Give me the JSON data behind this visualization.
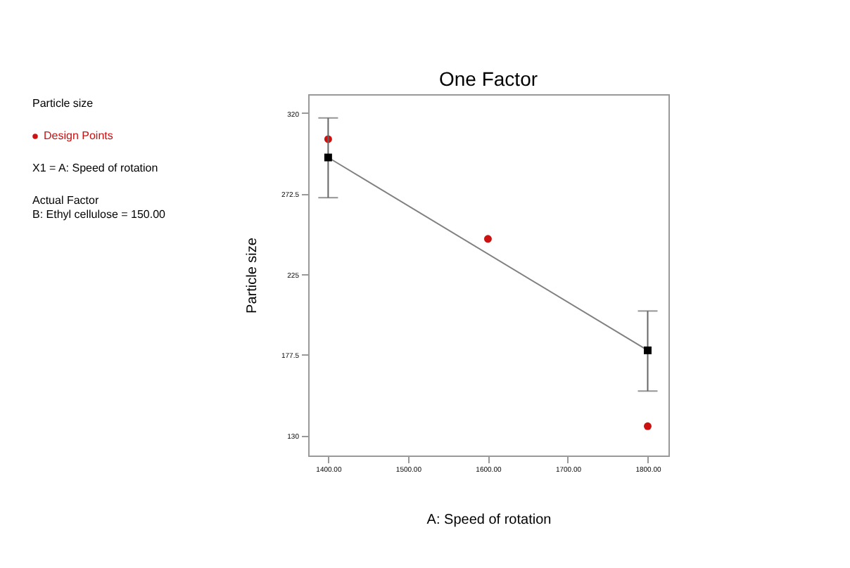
{
  "chart_data": {
    "type": "scatter",
    "title": "One Factor",
    "xlabel": "A: Speed of rotation",
    "ylabel": "Particle size",
    "annotations": [
      "Particle size",
      "X1 = A: Speed of rotation",
      "Actual Factor",
      "B: Ethyl cellulose = 150.00"
    ],
    "series": [
      {
        "name": "Design Points",
        "marker": "circle",
        "color": "#cc1111",
        "x": [
          1400,
          1600,
          1800
        ],
        "values": [
          304.5,
          245.7,
          135.3
        ]
      },
      {
        "type": "line",
        "marker": "none",
        "color": "#808080",
        "x": [
          1400,
          1800
        ],
        "values": [
          293.7,
          180
        ]
      },
      {
        "marker": "square",
        "color": "#000000",
        "x": [
          1400,
          1800
        ],
        "values": [
          293.7,
          180
        ],
        "errors": [
          [
            270,
            317
          ],
          [
            156,
            203.2
          ]
        ]
      }
    ],
    "xlim": [
      1375,
      1826
    ],
    "ylim": [
      118,
      331
    ],
    "xticks": [
      {
        "value": 1400,
        "label": "1400.00"
      },
      {
        "value": 1500,
        "label": "1500.00"
      },
      {
        "value": 1600,
        "label": "1600.00"
      },
      {
        "value": 1700,
        "label": "1700.00"
      },
      {
        "value": 1800,
        "label": "1800.00"
      }
    ],
    "yticks": [
      130,
      177.5,
      225,
      272.5,
      320
    ],
    "grid": false,
    "legend": "left"
  }
}
